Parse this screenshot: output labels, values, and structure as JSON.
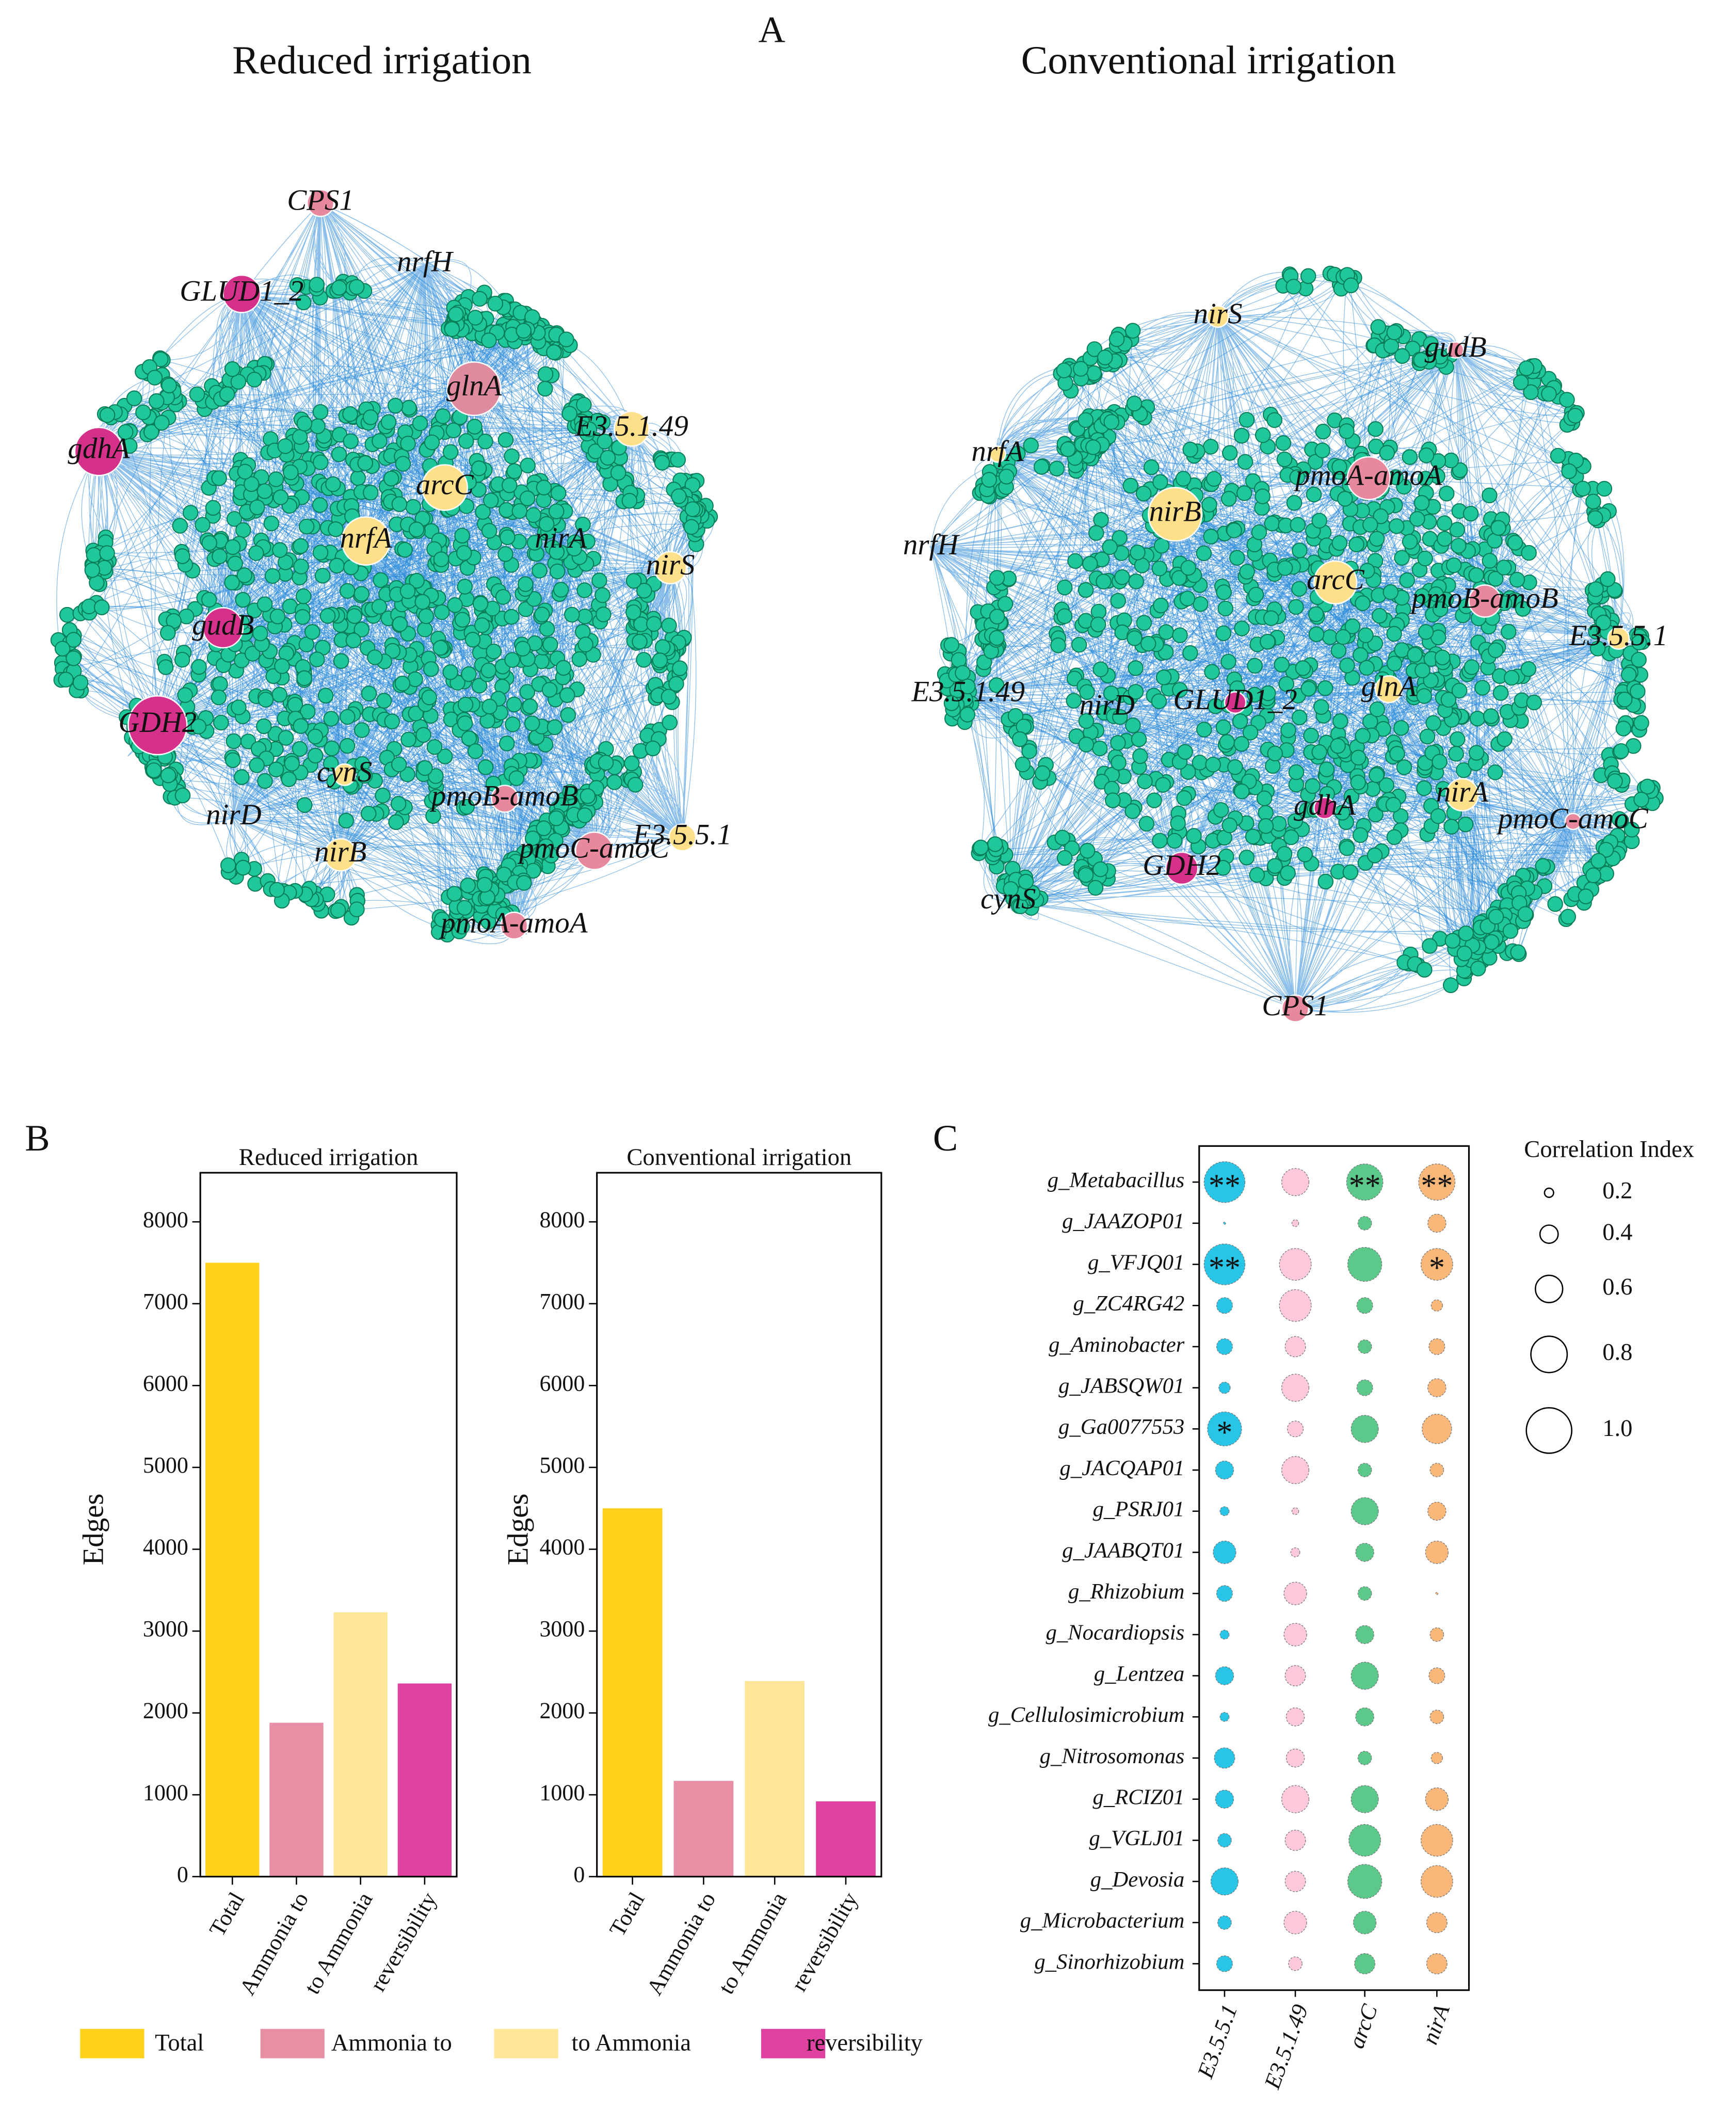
{
  "panel_labels": [
    "A",
    "B",
    "C"
  ],
  "networks": [
    {
      "title": "Reduced irrigation",
      "nodes": [
        {
          "label": "CPS1",
          "color": "#e8889e"
        },
        {
          "label": "nrfH",
          "color": "#ffe08a"
        },
        {
          "label": "GLUD1_2",
          "color": "#d6318a"
        },
        {
          "label": "glnA",
          "color": "#e08aa0"
        },
        {
          "label": "E3.5.1.49",
          "color": "#ffe08a"
        },
        {
          "label": "gdhA",
          "color": "#d6318a"
        },
        {
          "label": "arcC",
          "color": "#ffe08a"
        },
        {
          "label": "nrfA",
          "color": "#ffe08a"
        },
        {
          "label": "nirA",
          "color": "#ffe08a"
        },
        {
          "label": "nirS",
          "color": "#ffe08a"
        },
        {
          "label": "gudB",
          "color": "#d6318a"
        },
        {
          "label": "GDH2",
          "color": "#d6318a"
        },
        {
          "label": "cynS",
          "color": "#ffe08a"
        },
        {
          "label": "nirD",
          "color": "#ffe08a"
        },
        {
          "label": "pmoB-amoB",
          "color": "#e8889e"
        },
        {
          "label": "E3.5.5.1",
          "color": "#ffe08a"
        },
        {
          "label": "nirB",
          "color": "#ffe08a"
        },
        {
          "label": "pmoC-amoC",
          "color": "#e8889e"
        },
        {
          "label": "pmoA-amoA",
          "color": "#e8889e"
        }
      ]
    },
    {
      "title": "Conventional irrigation",
      "nodes": [
        {
          "label": "nirS",
          "color": "#ffe08a"
        },
        {
          "label": "gudB",
          "color": "#e8889e"
        },
        {
          "label": "nrfA",
          "color": "#ffe08a"
        },
        {
          "label": "pmoA-amoA",
          "color": "#e8889e"
        },
        {
          "label": "nirB",
          "color": "#ffe08a"
        },
        {
          "label": "nrfH",
          "color": "#ffe08a"
        },
        {
          "label": "arcC",
          "color": "#ffe08a"
        },
        {
          "label": "pmoB-amoB",
          "color": "#e8889e"
        },
        {
          "label": "E3.5.5.1",
          "color": "#ffe08a"
        },
        {
          "label": "E3.5.1.49",
          "color": "#ffe08a"
        },
        {
          "label": "nirD",
          "color": "#ffe08a"
        },
        {
          "label": "GLUD1_2",
          "color": "#d6318a"
        },
        {
          "label": "glnA",
          "color": "#ffe08a"
        },
        {
          "label": "nirA",
          "color": "#ffe08a"
        },
        {
          "label": "gdhA",
          "color": "#d6318a"
        },
        {
          "label": "pmoC-amoC",
          "color": "#e8889e"
        },
        {
          "label": "GDH2",
          "color": "#d6318a"
        },
        {
          "label": "cynS",
          "color": "#ffe08a"
        },
        {
          "label": "CPS1",
          "color": "#e8889e"
        }
      ]
    }
  ],
  "chart_data": [
    {
      "type": "bar",
      "title": "Reduced irrigation",
      "y_label": "Edges",
      "categories": [
        "Total",
        "Ammonia to",
        "to Ammonia",
        "reversibility"
      ],
      "values": [
        7500,
        1880,
        3230,
        2360
      ],
      "colors": [
        "#ffd11a",
        "#e68fa5",
        "#ffe699",
        "#e040a0"
      ],
      "ylim": [
        0,
        8600
      ],
      "yticks": [
        0,
        1000,
        2000,
        3000,
        4000,
        5000,
        6000,
        7000,
        8000
      ]
    },
    {
      "type": "bar",
      "title": "Conventional irrigation",
      "y_label": "Edges",
      "categories": [
        "Total",
        "Ammonia to",
        "to Ammonia",
        "reversibility"
      ],
      "values": [
        4500,
        1170,
        2390,
        920
      ],
      "colors": [
        "#ffd11a",
        "#e68fa5",
        "#ffe699",
        "#e040a0"
      ],
      "ylim": [
        0,
        8600
      ],
      "yticks": [
        0,
        1000,
        2000,
        3000,
        4000,
        5000,
        6000,
        7000,
        8000
      ]
    },
    {
      "type": "bubble",
      "categories": [
        "g_Metabacillus",
        "g_JAAZOP01",
        "g_VFJQ01",
        "g_ZC4RG42",
        "g_Aminobacter",
        "g_JABSQW01",
        "g_Ga0077553",
        "g_JACQAP01",
        "g_PSRJ01",
        "g_JAABQT01",
        "g_Rhizobium",
        "g_Nocardiopsis",
        "g_Lentzea",
        "g_Cellulosimicrobium",
        "g_Nitrosomonas",
        "g_RCIZ01",
        "g_VGLJ01",
        "g_Devosia",
        "g_Microbacterium",
        "g_Sinorhizobium"
      ],
      "series": [
        {
          "name": "E3.5.5.1",
          "color": "#29c5e6",
          "values": [
            0.9,
            0.05,
            0.9,
            0.35,
            0.35,
            0.25,
            0.75,
            0.4,
            0.2,
            0.5,
            0.35,
            0.2,
            0.4,
            0.2,
            0.45,
            0.4,
            0.3,
            0.6,
            0.3,
            0.35
          ],
          "stars": [
            "**",
            null,
            "**",
            null,
            null,
            null,
            "*",
            null,
            null,
            null,
            null,
            null,
            null,
            null,
            null,
            null,
            null,
            null,
            null,
            null
          ]
        },
        {
          "name": "E3.5.1.49",
          "color": "#ffc8dc",
          "values": [
            0.6,
            0.15,
            0.7,
            0.7,
            0.45,
            0.6,
            0.35,
            0.6,
            0.15,
            0.2,
            0.5,
            0.5,
            0.45,
            0.4,
            0.4,
            0.6,
            0.45,
            0.45,
            0.5,
            0.3
          ],
          "stars": [
            null,
            null,
            null,
            null,
            null,
            null,
            null,
            null,
            null,
            null,
            null,
            null,
            null,
            null,
            null,
            null,
            null,
            null,
            null,
            null
          ]
        },
        {
          "name": "arcC",
          "color": "#5cc98a",
          "values": [
            0.8,
            0.3,
            0.75,
            0.35,
            0.3,
            0.35,
            0.6,
            0.3,
            0.6,
            0.4,
            0.3,
            0.4,
            0.6,
            0.4,
            0.3,
            0.6,
            0.7,
            0.75,
            0.5,
            0.45
          ],
          "stars": [
            "**",
            null,
            null,
            null,
            null,
            null,
            null,
            null,
            null,
            null,
            null,
            null,
            null,
            null,
            null,
            null,
            null,
            null,
            null,
            null
          ]
        },
        {
          "name": "nirA",
          "color": "#f9b77a",
          "values": [
            0.8,
            0.4,
            0.7,
            0.25,
            0.35,
            0.4,
            0.65,
            0.3,
            0.4,
            0.5,
            0.05,
            0.3,
            0.35,
            0.3,
            0.25,
            0.5,
            0.7,
            0.7,
            0.45,
            0.45
          ],
          "stars": [
            "**",
            null,
            "*",
            null,
            null,
            null,
            null,
            null,
            null,
            null,
            null,
            null,
            null,
            null,
            null,
            null,
            null,
            null,
            null,
            null
          ]
        }
      ],
      "size_legend": {
        "title": "Correlation Index",
        "values": [
          0.2,
          0.4,
          0.6,
          0.8,
          {
            "value": 1,
            "label": "1.0"
          }
        ]
      }
    }
  ]
}
